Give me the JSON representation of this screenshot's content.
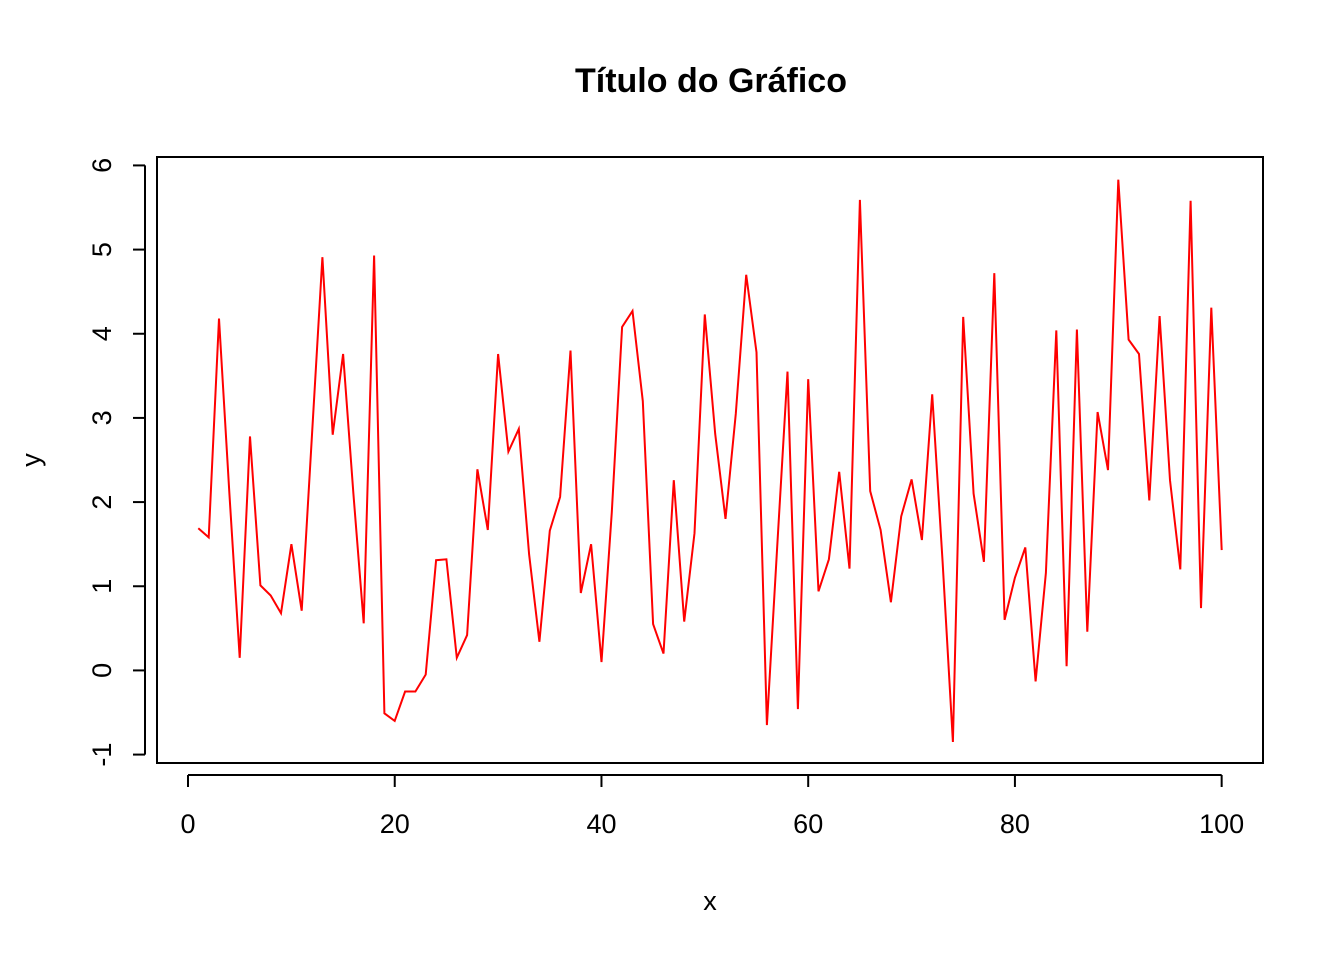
{
  "chart_data": {
    "type": "line",
    "title": "Título do Gráfico",
    "xlabel": "x",
    "ylabel": "y",
    "xlim": [
      -3,
      104
    ],
    "ylim": [
      -1.1,
      6.1
    ],
    "xticks": [
      0,
      20,
      40,
      60,
      80,
      100
    ],
    "yticks": [
      -1,
      0,
      1,
      2,
      3,
      4,
      5,
      6
    ],
    "grid": false,
    "line_color": "#ff0000",
    "series": [
      {
        "x": [
          1,
          2,
          3,
          4,
          5,
          6,
          7,
          8,
          9,
          10,
          11,
          12,
          13,
          14,
          15,
          16,
          17,
          18,
          19,
          20,
          21,
          22,
          23,
          24,
          25,
          26,
          27,
          28,
          29,
          30,
          31,
          32,
          33,
          34,
          35,
          36,
          37,
          38,
          39,
          40,
          41,
          42,
          43,
          44,
          45,
          46,
          47,
          48,
          49,
          50,
          51,
          52,
          53,
          54,
          55,
          56,
          57,
          58,
          59,
          60,
          61,
          62,
          63,
          64,
          65,
          66,
          67,
          68,
          69,
          70,
          71,
          72,
          73,
          74,
          75,
          76,
          77,
          78,
          79,
          80,
          81,
          82,
          83,
          84,
          85,
          86,
          87,
          88,
          89,
          90,
          91,
          92,
          93,
          94,
          95,
          96,
          97,
          98,
          99,
          100
        ],
        "y": [
          1.69,
          1.58,
          4.18,
          2.1,
          0.15,
          2.78,
          1.01,
          0.89,
          0.68,
          1.5,
          0.71,
          2.8,
          4.91,
          2.8,
          3.76,
          2.1,
          0.56,
          4.93,
          -0.51,
          -0.6,
          -0.25,
          -0.25,
          -0.05,
          1.31,
          1.32,
          0.15,
          0.42,
          2.39,
          1.67,
          3.76,
          2.6,
          2.87,
          1.38,
          0.34,
          1.66,
          2.06,
          3.8,
          0.92,
          1.5,
          0.1,
          1.88,
          4.08,
          4.27,
          3.2,
          0.55,
          0.2,
          2.26,
          0.58,
          1.63,
          4.23,
          2.81,
          1.8,
          3.05,
          4.7,
          3.78,
          -0.65,
          1.47,
          3.55,
          -0.46,
          3.46,
          0.94,
          1.32,
          2.36,
          1.21,
          5.59,
          2.13,
          1.67,
          0.81,
          1.83,
          2.27,
          1.55,
          3.28,
          1.29,
          -0.85,
          4.2,
          2.1,
          1.29,
          4.72,
          0.6,
          1.1,
          1.46,
          -0.13,
          1.16,
          4.04,
          0.05,
          4.05,
          0.46,
          3.07,
          2.38,
          5.83,
          3.93,
          3.76,
          2.02,
          4.21,
          2.26,
          1.2,
          5.58,
          0.74,
          4.31,
          1.43
        ]
      }
    ]
  }
}
